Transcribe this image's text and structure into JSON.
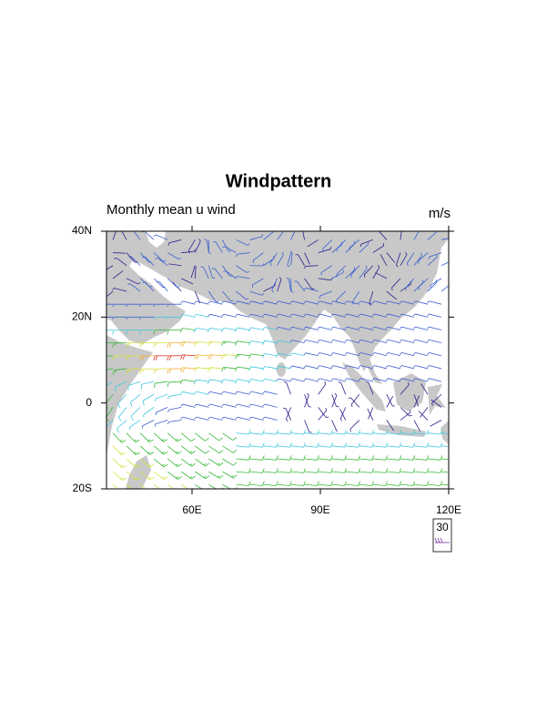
{
  "title": "Windpattern",
  "left_string": "Monthly mean u wind",
  "right_string": "m/s",
  "map": {
    "xlim": [
      40,
      120
    ],
    "ylim": [
      -20,
      40
    ],
    "xticks": [
      {
        "value": 60,
        "label": "60E"
      },
      {
        "value": 90,
        "label": "90E"
      },
      {
        "value": 120,
        "label": "120E"
      }
    ],
    "yticks": [
      {
        "value": -20,
        "label": "20S"
      },
      {
        "value": 0,
        "label": "0"
      },
      {
        "value": 20,
        "label": "20N"
      },
      {
        "value": 40,
        "label": "40N"
      }
    ]
  },
  "reference_vector": 30
}
